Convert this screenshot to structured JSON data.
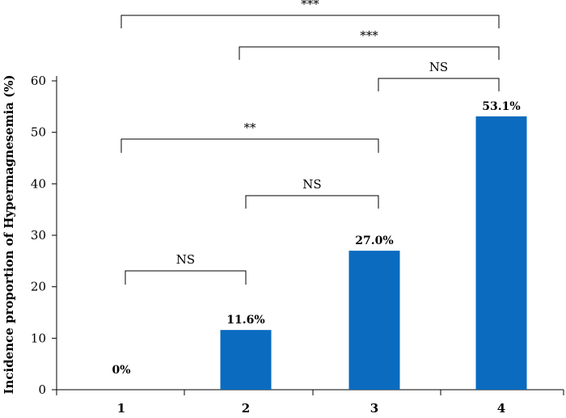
{
  "chart_data": {
    "type": "bar",
    "ylabel": "Incidence proportion of Hypermagnesemia (%)",
    "xlabel": "",
    "categories": [
      "1",
      "2",
      "3",
      "4"
    ],
    "values": [
      0,
      11.6,
      27.0,
      53.1
    ],
    "data_labels": [
      "0%",
      "11.6%",
      "27.0%",
      "53.1%"
    ],
    "ylim": [
      0,
      60
    ],
    "yticks": [
      "0",
      "10",
      "20",
      "30",
      "40",
      "50",
      "60"
    ],
    "bar_color": "#0a6bbf",
    "grid": false,
    "comparisons": [
      {
        "from": "1",
        "to": "2",
        "label": "NS"
      },
      {
        "from": "2",
        "to": "3",
        "label": "NS"
      },
      {
        "from": "1",
        "to": "3",
        "label": "**"
      },
      {
        "from": "3",
        "to": "4",
        "label": "NS"
      },
      {
        "from": "2",
        "to": "4",
        "label": "***"
      },
      {
        "from": "1",
        "to": "4",
        "label": "***"
      }
    ]
  }
}
